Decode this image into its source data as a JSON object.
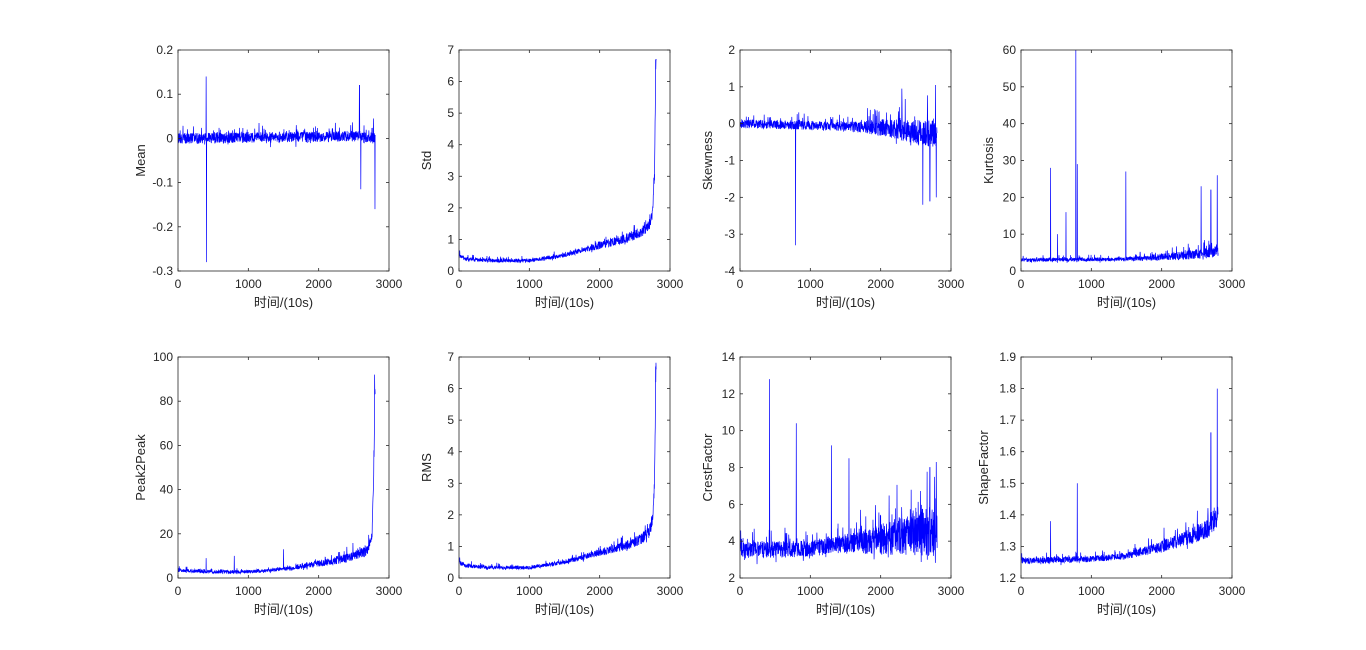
{
  "colors": {
    "series": "#0000ff",
    "axis": "#262626",
    "background": "#ffffff"
  },
  "chart_data": [
    {
      "type": "line",
      "ylabel": "Mean",
      "xlabel": "时间/(10s)",
      "xlim": [
        0,
        3000
      ],
      "ylim": [
        -0.3,
        0.2
      ],
      "xticks": [
        "0",
        "1000",
        "2000",
        "3000"
      ],
      "yticks": [
        "-0.3",
        "-0.2",
        "-0.1",
        "0",
        "0.1",
        "0.2"
      ],
      "trend": [
        [
          0,
          0.0
        ],
        [
          2600,
          0.005
        ],
        [
          2800,
          0.0
        ]
      ],
      "noise": 0.012,
      "spikes": [
        [
          400,
          0.14
        ],
        [
          405,
          -0.28
        ],
        [
          2580,
          0.12
        ],
        [
          2600,
          -0.115
        ],
        [
          2780,
          0.045
        ],
        [
          2800,
          -0.16
        ]
      ],
      "series": [
        {
          "x_end": 2803
        }
      ]
    },
    {
      "type": "line",
      "ylabel": "Std",
      "xlabel": "时间/(10s)",
      "xlim": [
        0,
        3000
      ],
      "ylim": [
        0,
        7
      ],
      "xticks": [
        "0",
        "1000",
        "2000",
        "3000"
      ],
      "yticks": [
        "0",
        "1",
        "2",
        "3",
        "4",
        "5",
        "6",
        "7"
      ],
      "trend": [
        [
          0,
          0.5
        ],
        [
          100,
          0.38
        ],
        [
          500,
          0.33
        ],
        [
          1000,
          0.33
        ],
        [
          1500,
          0.5
        ],
        [
          2000,
          0.8
        ],
        [
          2400,
          1.05
        ],
        [
          2600,
          1.25
        ],
        [
          2700,
          1.45
        ],
        [
          2750,
          1.8
        ],
        [
          2780,
          3.0
        ],
        [
          2800,
          6.7
        ]
      ],
      "noise": 0.06,
      "spikes": [
        [
          10,
          0.65
        ],
        [
          2795,
          6.7
        ]
      ],
      "series": [
        {
          "x_end": 2803
        }
      ]
    },
    {
      "type": "line",
      "ylabel": "Skewness",
      "xlabel": "时间/(10s)",
      "xlim": [
        0,
        3000
      ],
      "ylim": [
        -4,
        2
      ],
      "xticks": [
        "0",
        "1000",
        "2000",
        "3000"
      ],
      "yticks": [
        "-4",
        "-3",
        "-2",
        "-1",
        "0",
        "1",
        "2"
      ],
      "trend": [
        [
          0,
          0.0
        ],
        [
          1000,
          -0.05
        ],
        [
          2000,
          -0.1
        ],
        [
          2800,
          -0.3
        ]
      ],
      "noise": 0.12,
      "spikes": [
        [
          790,
          -3.3
        ],
        [
          2300,
          0.95
        ],
        [
          2600,
          -2.2
        ],
        [
          2700,
          -2.1
        ],
        [
          2780,
          1.05
        ],
        [
          2790,
          -2.0
        ]
      ],
      "series": [
        {
          "x_end": 2803
        }
      ]
    },
    {
      "type": "line",
      "ylabel": "Kurtosis",
      "xlabel": "时间/(10s)",
      "xlim": [
        0,
        3000
      ],
      "ylim": [
        0,
        60
      ],
      "xticks": [
        "0",
        "1000",
        "2000",
        "3000"
      ],
      "yticks": [
        "0",
        "10",
        "20",
        "30",
        "40",
        "50",
        "60"
      ],
      "trend": [
        [
          0,
          3.0
        ],
        [
          1500,
          3.2
        ],
        [
          2200,
          4.0
        ],
        [
          2600,
          4.8
        ],
        [
          2800,
          5.5
        ]
      ],
      "noise": 0.5,
      "spikes": [
        [
          420,
          28
        ],
        [
          520,
          10
        ],
        [
          640,
          16
        ],
        [
          780,
          60
        ],
        [
          800,
          29
        ],
        [
          1490,
          27
        ],
        [
          2560,
          23
        ],
        [
          2700,
          22
        ],
        [
          2790,
          26
        ]
      ],
      "series": [
        {
          "x_end": 2803
        }
      ]
    },
    {
      "type": "line",
      "ylabel": "Peak2Peak",
      "xlabel": "时间/(10s)",
      "xlim": [
        0,
        3000
      ],
      "ylim": [
        0,
        100
      ],
      "xticks": [
        "0",
        "1000",
        "2000",
        "3000"
      ],
      "yticks": [
        "0",
        "20",
        "40",
        "60",
        "80",
        "100"
      ],
      "trend": [
        [
          0,
          3.5
        ],
        [
          500,
          2.8
        ],
        [
          1000,
          2.8
        ],
        [
          1500,
          4.0
        ],
        [
          2000,
          6.5
        ],
        [
          2400,
          9.0
        ],
        [
          2600,
          11.0
        ],
        [
          2700,
          13.0
        ],
        [
          2760,
          20.0
        ],
        [
          2785,
          50.0
        ],
        [
          2800,
          85.0
        ]
      ],
      "noise": 0.8,
      "spikes": [
        [
          400,
          9
        ],
        [
          800,
          10
        ],
        [
          1500,
          13
        ],
        [
          2795,
          92
        ]
      ],
      "series": [
        {
          "x_end": 2803
        }
      ]
    },
    {
      "type": "line",
      "ylabel": "RMS",
      "xlabel": "时间/(10s)",
      "xlim": [
        0,
        3000
      ],
      "ylim": [
        0,
        7
      ],
      "xticks": [
        "0",
        "1000",
        "2000",
        "3000"
      ],
      "yticks": [
        "0",
        "1",
        "2",
        "3",
        "4",
        "5",
        "6",
        "7"
      ],
      "trend": [
        [
          0,
          0.5
        ],
        [
          100,
          0.38
        ],
        [
          500,
          0.33
        ],
        [
          1000,
          0.33
        ],
        [
          1500,
          0.5
        ],
        [
          2000,
          0.8
        ],
        [
          2400,
          1.05
        ],
        [
          2600,
          1.25
        ],
        [
          2700,
          1.45
        ],
        [
          2750,
          1.8
        ],
        [
          2780,
          3.0
        ],
        [
          2800,
          6.7
        ]
      ],
      "noise": 0.06,
      "spikes": [
        [
          10,
          0.65
        ],
        [
          2795,
          6.7
        ]
      ],
      "series": [
        {
          "x_end": 2803
        }
      ]
    },
    {
      "type": "line",
      "ylabel": "CrestFactor",
      "xlabel": "时间/(10s)",
      "xlim": [
        0,
        3000
      ],
      "ylim": [
        2,
        14
      ],
      "xticks": [
        "0",
        "1000",
        "2000",
        "3000"
      ],
      "yticks": [
        "2",
        "4",
        "6",
        "8",
        "10",
        "12",
        "14"
      ],
      "trend": [
        [
          0,
          3.5
        ],
        [
          1000,
          3.6
        ],
        [
          2000,
          4.1
        ],
        [
          2800,
          4.6
        ]
      ],
      "noise": 0.45,
      "spikes": [
        [
          420,
          12.8
        ],
        [
          800,
          10.4
        ],
        [
          1300,
          9.2
        ],
        [
          1550,
          8.5
        ],
        [
          2700,
          8.0
        ],
        [
          2790,
          8.3
        ]
      ],
      "series": [
        {
          "x_end": 2803
        }
      ]
    },
    {
      "type": "line",
      "ylabel": "ShapeFactor",
      "xlabel": "时间/(10s)",
      "xlim": [
        0,
        3000
      ],
      "ylim": [
        1.2,
        1.9
      ],
      "xticks": [
        "0",
        "1000",
        "2000",
        "3000"
      ],
      "yticks": [
        "1.2",
        "1.3",
        "1.4",
        "1.5",
        "1.6",
        "1.7",
        "1.8",
        "1.9"
      ],
      "trend": [
        [
          0,
          1.255
        ],
        [
          1000,
          1.26
        ],
        [
          1500,
          1.27
        ],
        [
          2000,
          1.3
        ],
        [
          2400,
          1.33
        ],
        [
          2700,
          1.36
        ],
        [
          2800,
          1.4
        ]
      ],
      "noise": 0.01,
      "spikes": [
        [
          420,
          1.38
        ],
        [
          800,
          1.5
        ],
        [
          2700,
          1.66
        ],
        [
          2790,
          1.8
        ]
      ],
      "series": [
        {
          "x_end": 2803
        }
      ]
    }
  ]
}
